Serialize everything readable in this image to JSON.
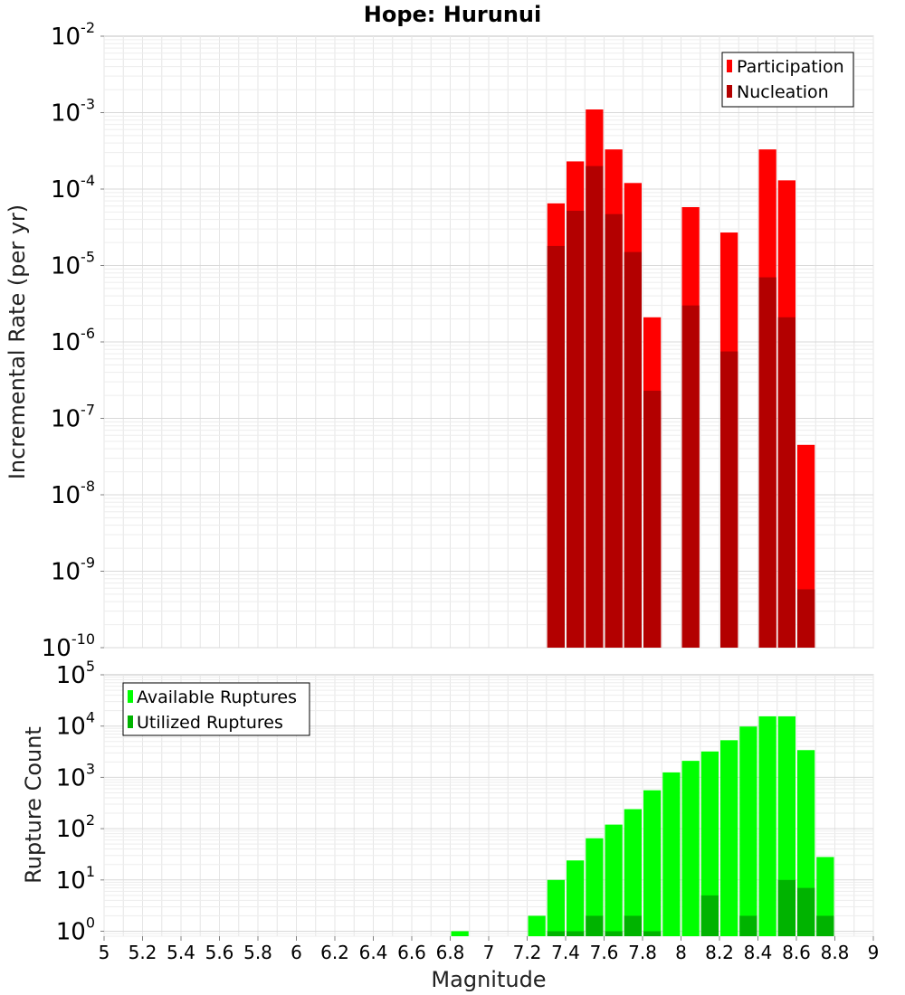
{
  "chart_data": [
    {
      "type": "bar",
      "title": "Hope: Hurunui",
      "xlabel": "",
      "ylabel": "Incremental Rate (per yr)",
      "y_scale": "log",
      "ylim": [
        1e-10,
        0.01
      ],
      "xlim": [
        5,
        9
      ],
      "ytick_exponents": [
        "-10",
        "-9",
        "-8",
        "-7",
        "-6",
        "-5",
        "-4",
        "-3",
        "-2"
      ],
      "legend_position": "top-right",
      "grid": true,
      "series": [
        {
          "name": "Participation",
          "color": "#ff0000",
          "points": [
            {
              "x": 7.35,
              "y": 6.5e-05
            },
            {
              "x": 7.45,
              "y": 0.00023
            },
            {
              "x": 7.55,
              "y": 0.0011
            },
            {
              "x": 7.65,
              "y": 0.00033
            },
            {
              "x": 7.75,
              "y": 0.00012
            },
            {
              "x": 7.85,
              "y": 2.1e-06
            },
            {
              "x": 8.05,
              "y": 5.8e-05
            },
            {
              "x": 8.25,
              "y": 2.7e-05
            },
            {
              "x": 8.45,
              "y": 0.00033
            },
            {
              "x": 8.55,
              "y": 0.00013
            },
            {
              "x": 8.65,
              "y": 4.5e-08
            }
          ]
        },
        {
          "name": "Nucleation",
          "color": "#b30000",
          "points": [
            {
              "x": 7.35,
              "y": 1.8e-05
            },
            {
              "x": 7.45,
              "y": 5.2e-05
            },
            {
              "x": 7.55,
              "y": 0.0002
            },
            {
              "x": 7.65,
              "y": 4.7e-05
            },
            {
              "x": 7.75,
              "y": 1.5e-05
            },
            {
              "x": 7.85,
              "y": 2.3e-07
            },
            {
              "x": 8.05,
              "y": 3e-06
            },
            {
              "x": 8.25,
              "y": 7.5e-07
            },
            {
              "x": 8.45,
              "y": 7e-06
            },
            {
              "x": 8.55,
              "y": 2.1e-06
            },
            {
              "x": 8.65,
              "y": 5.8e-10
            }
          ]
        }
      ]
    },
    {
      "type": "bar",
      "title": "",
      "xlabel": "Magnitude",
      "ylabel": "Rupture Count",
      "y_scale": "log",
      "ylim": [
        0.8,
        100000.0
      ],
      "xlim": [
        5,
        9
      ],
      "ytick_exponents": [
        "0",
        "1",
        "2",
        "3",
        "4",
        "5"
      ],
      "xticks": [
        "5",
        "5.2",
        "5.4",
        "5.6",
        "5.8",
        "6",
        "6.2",
        "6.4",
        "6.6",
        "6.8",
        "7",
        "7.2",
        "7.4",
        "7.6",
        "7.8",
        "8",
        "8.2",
        "8.4",
        "8.6",
        "8.8",
        "9"
      ],
      "legend_position": "top-left",
      "grid": true,
      "series": [
        {
          "name": "Available Ruptures",
          "color": "#00ff00",
          "points": [
            {
              "x": 6.85,
              "y": 1
            },
            {
              "x": 7.25,
              "y": 2
            },
            {
              "x": 7.35,
              "y": 10
            },
            {
              "x": 7.45,
              "y": 24
            },
            {
              "x": 7.55,
              "y": 65
            },
            {
              "x": 7.65,
              "y": 120
            },
            {
              "x": 7.75,
              "y": 240
            },
            {
              "x": 7.85,
              "y": 560
            },
            {
              "x": 7.95,
              "y": 1250
            },
            {
              "x": 8.05,
              "y": 2100
            },
            {
              "x": 8.15,
              "y": 3200
            },
            {
              "x": 8.25,
              "y": 5300
            },
            {
              "x": 8.35,
              "y": 9800
            },
            {
              "x": 8.45,
              "y": 15500
            },
            {
              "x": 8.55,
              "y": 15500
            },
            {
              "x": 8.65,
              "y": 3400
            },
            {
              "x": 8.75,
              "y": 28
            }
          ]
        },
        {
          "name": "Utilized Ruptures",
          "color": "#00b300",
          "points": [
            {
              "x": 7.35,
              "y": 1
            },
            {
              "x": 7.45,
              "y": 1
            },
            {
              "x": 7.55,
              "y": 2
            },
            {
              "x": 7.65,
              "y": 1
            },
            {
              "x": 7.75,
              "y": 2
            },
            {
              "x": 7.85,
              "y": 1
            },
            {
              "x": 8.15,
              "y": 5
            },
            {
              "x": 8.35,
              "y": 2
            },
            {
              "x": 8.55,
              "y": 10
            },
            {
              "x": 8.65,
              "y": 7
            },
            {
              "x": 8.75,
              "y": 2
            }
          ]
        }
      ]
    }
  ]
}
